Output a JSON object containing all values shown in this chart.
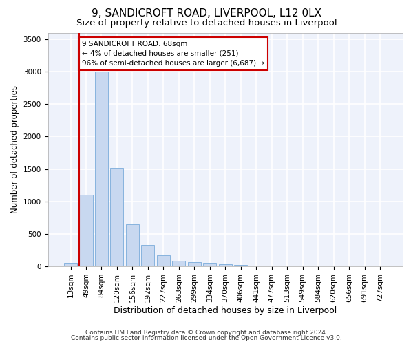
{
  "title1": "9, SANDICROFT ROAD, LIVERPOOL, L12 0LX",
  "title2": "Size of property relative to detached houses in Liverpool",
  "xlabel": "Distribution of detached houses by size in Liverpool",
  "ylabel": "Number of detached properties",
  "categories": [
    "13sqm",
    "49sqm",
    "84sqm",
    "120sqm",
    "156sqm",
    "192sqm",
    "227sqm",
    "263sqm",
    "299sqm",
    "334sqm",
    "370sqm",
    "406sqm",
    "441sqm",
    "477sqm",
    "513sqm",
    "549sqm",
    "584sqm",
    "620sqm",
    "656sqm",
    "691sqm",
    "727sqm"
  ],
  "values": [
    50,
    1100,
    3000,
    1520,
    650,
    330,
    175,
    90,
    65,
    50,
    30,
    20,
    12,
    8,
    5,
    3,
    2,
    1,
    0,
    0,
    0
  ],
  "bar_color": "#c8d8f0",
  "bar_edge_color": "#7aabda",
  "highlight_bar_index": 1,
  "vline_color": "#cc0000",
  "annotation_text": "9 SANDICROFT ROAD: 68sqm\n← 4% of detached houses are smaller (251)\n96% of semi-detached houses are larger (6,687) →",
  "annotation_box_color": "#ffffff",
  "annotation_box_edge": "#cc0000",
  "ylim": [
    0,
    3600
  ],
  "yticks": [
    0,
    500,
    1000,
    1500,
    2000,
    2500,
    3000,
    3500
  ],
  "footer1": "Contains HM Land Registry data © Crown copyright and database right 2024.",
  "footer2": "Contains public sector information licensed under the Open Government Licence v3.0.",
  "bg_color": "#ffffff",
  "plot_bg_color": "#eef2fb",
  "grid_color": "#ffffff",
  "title1_fontsize": 11,
  "title2_fontsize": 9.5,
  "xlabel_fontsize": 9,
  "ylabel_fontsize": 8.5,
  "tick_fontsize": 7.5,
  "footer_fontsize": 6.5
}
